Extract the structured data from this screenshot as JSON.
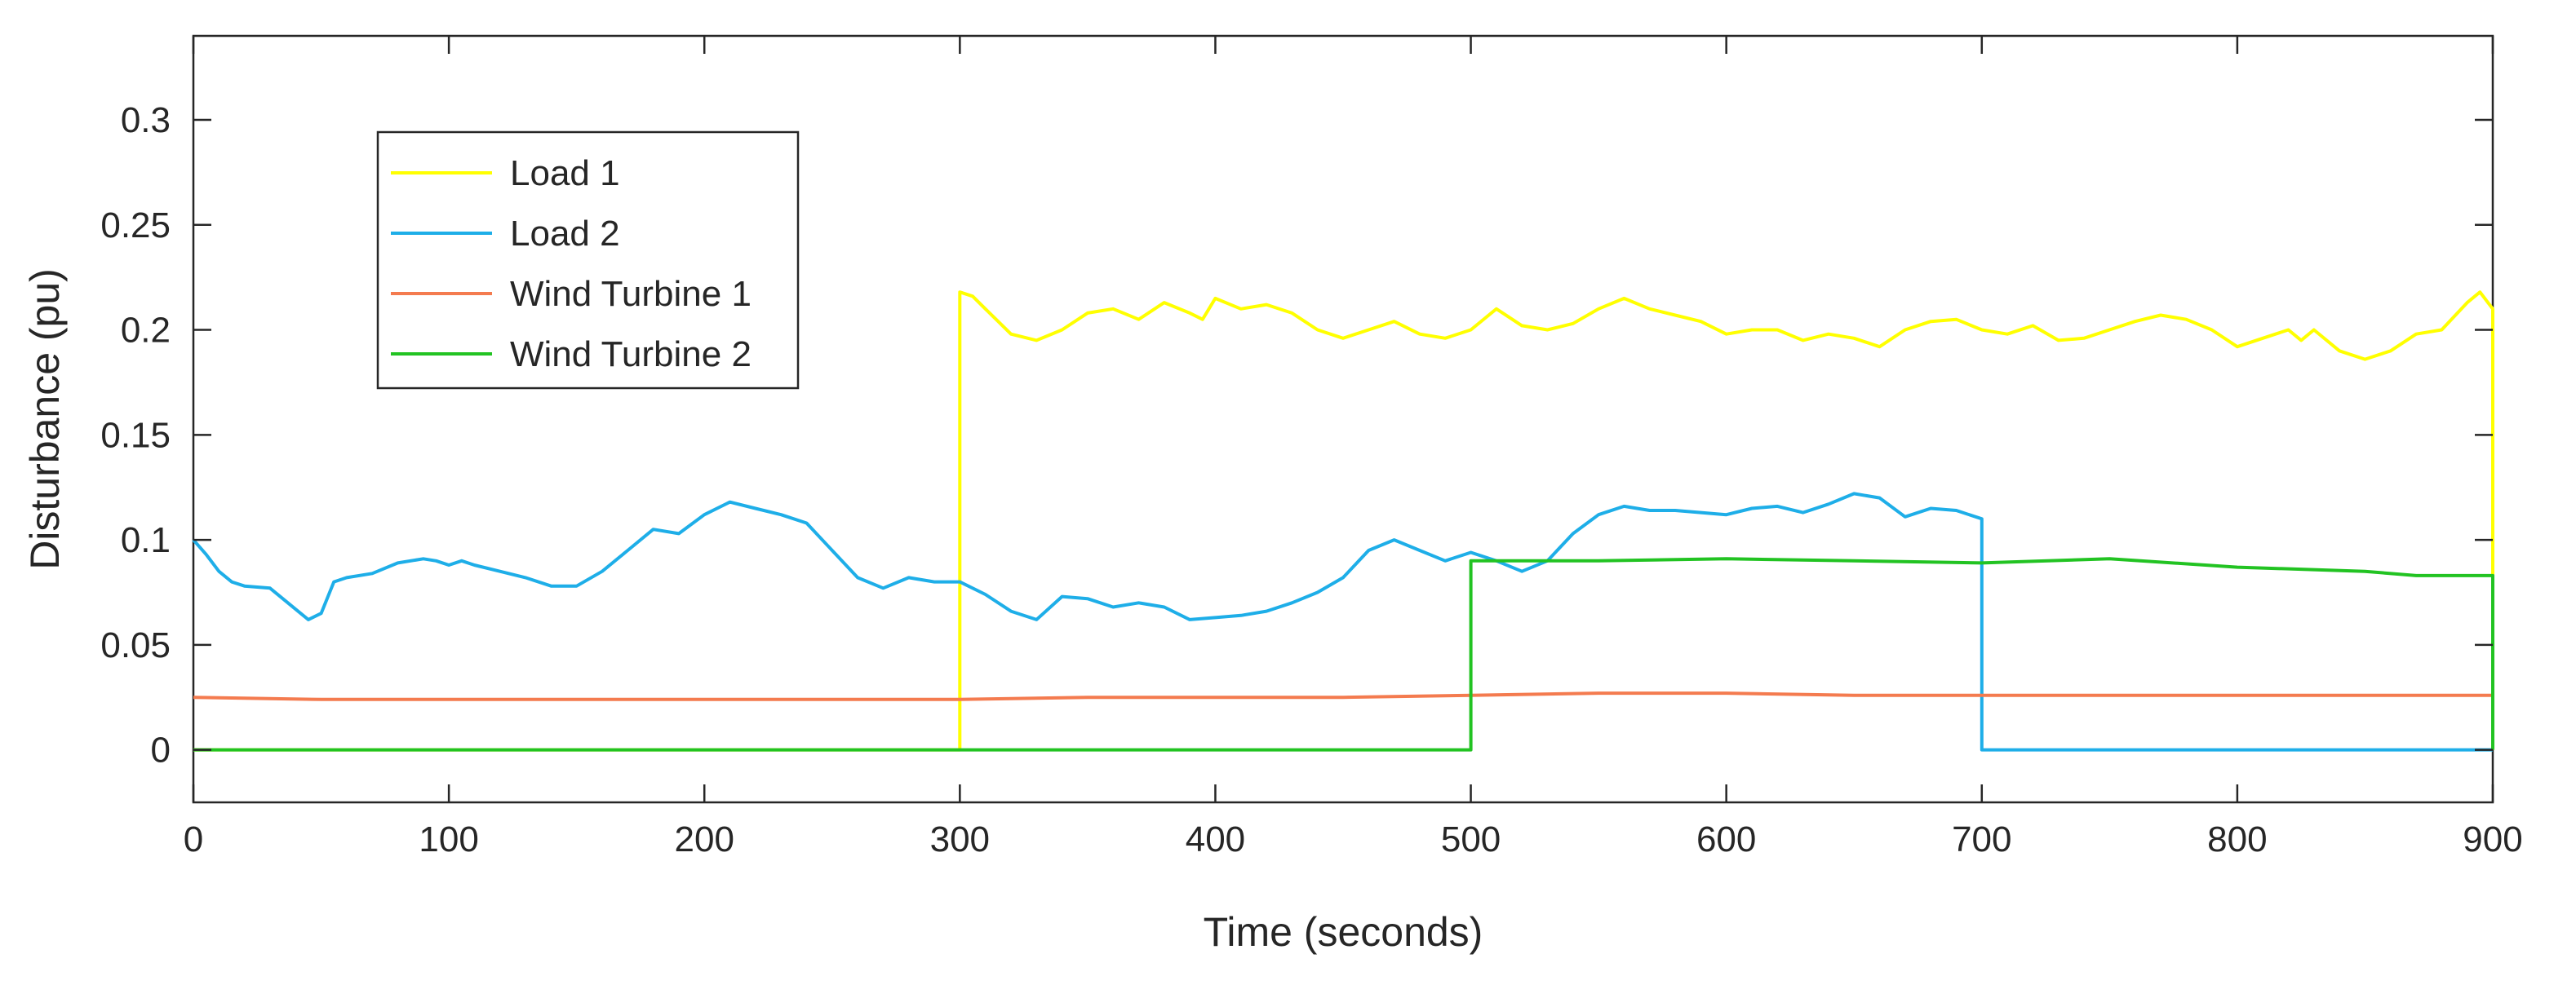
{
  "chart_data": {
    "type": "line",
    "title": "",
    "xlabel": "Time (seconds)",
    "ylabel": "Disturbance (pu)",
    "xlim": [
      0,
      900
    ],
    "ylim": [
      -0.025,
      0.34
    ],
    "xticks": [
      0,
      100,
      200,
      300,
      400,
      500,
      600,
      700,
      800,
      900
    ],
    "xtick_labels": [
      "0",
      "100",
      "200",
      "300",
      "400",
      "500",
      "600",
      "700",
      "800",
      "900"
    ],
    "yticks": [
      0,
      0.05,
      0.1,
      0.15,
      0.2,
      0.25,
      0.3
    ],
    "ytick_labels": [
      "0",
      "0.05",
      "0.1",
      "0.15",
      "0.2",
      "0.25",
      "0.3"
    ],
    "grid": false,
    "legend_position": "top-left",
    "series": [
      {
        "name": "Load 1",
        "color": "#FFFF00",
        "points": [
          [
            0,
            0
          ],
          [
            300,
            0
          ],
          [
            300,
            0.218
          ],
          [
            305,
            0.216
          ],
          [
            310,
            0.21
          ],
          [
            315,
            0.204
          ],
          [
            320,
            0.198
          ],
          [
            330,
            0.195
          ],
          [
            340,
            0.2
          ],
          [
            350,
            0.208
          ],
          [
            360,
            0.21
          ],
          [
            370,
            0.205
          ],
          [
            380,
            0.213
          ],
          [
            390,
            0.208
          ],
          [
            395,
            0.205
          ],
          [
            400,
            0.215
          ],
          [
            410,
            0.21
          ],
          [
            420,
            0.212
          ],
          [
            430,
            0.208
          ],
          [
            440,
            0.2
          ],
          [
            450,
            0.196
          ],
          [
            460,
            0.2
          ],
          [
            470,
            0.204
          ],
          [
            480,
            0.198
          ],
          [
            490,
            0.196
          ],
          [
            500,
            0.2
          ],
          [
            510,
            0.21
          ],
          [
            520,
            0.202
          ],
          [
            530,
            0.2
          ],
          [
            540,
            0.203
          ],
          [
            550,
            0.21
          ],
          [
            560,
            0.215
          ],
          [
            570,
            0.21
          ],
          [
            580,
            0.207
          ],
          [
            590,
            0.204
          ],
          [
            600,
            0.198
          ],
          [
            610,
            0.2
          ],
          [
            620,
            0.2
          ],
          [
            630,
            0.195
          ],
          [
            640,
            0.198
          ],
          [
            650,
            0.196
          ],
          [
            660,
            0.192
          ],
          [
            670,
            0.2
          ],
          [
            680,
            0.204
          ],
          [
            690,
            0.205
          ],
          [
            700,
            0.2
          ],
          [
            710,
            0.198
          ],
          [
            720,
            0.202
          ],
          [
            730,
            0.195
          ],
          [
            740,
            0.196
          ],
          [
            750,
            0.2
          ],
          [
            760,
            0.204
          ],
          [
            770,
            0.207
          ],
          [
            780,
            0.205
          ],
          [
            790,
            0.2
          ],
          [
            800,
            0.192
          ],
          [
            810,
            0.196
          ],
          [
            820,
            0.2
          ],
          [
            825,
            0.195
          ],
          [
            830,
            0.2
          ],
          [
            840,
            0.19
          ],
          [
            850,
            0.186
          ],
          [
            860,
            0.19
          ],
          [
            870,
            0.198
          ],
          [
            880,
            0.2
          ],
          [
            890,
            0.213
          ],
          [
            895,
            0.218
          ],
          [
            900,
            0.21
          ],
          [
            900,
            0
          ]
        ]
      },
      {
        "name": "Load 2",
        "color": "#1EAEE8",
        "points": [
          [
            0,
            0.1
          ],
          [
            5,
            0.093
          ],
          [
            10,
            0.085
          ],
          [
            15,
            0.08
          ],
          [
            20,
            0.078
          ],
          [
            30,
            0.077
          ],
          [
            40,
            0.067
          ],
          [
            45,
            0.062
          ],
          [
            50,
            0.065
          ],
          [
            55,
            0.08
          ],
          [
            60,
            0.082
          ],
          [
            70,
            0.084
          ],
          [
            80,
            0.089
          ],
          [
            90,
            0.091
          ],
          [
            95,
            0.09
          ],
          [
            100,
            0.088
          ],
          [
            105,
            0.09
          ],
          [
            110,
            0.088
          ],
          [
            120,
            0.085
          ],
          [
            130,
            0.082
          ],
          [
            140,
            0.078
          ],
          [
            150,
            0.078
          ],
          [
            160,
            0.085
          ],
          [
            170,
            0.095
          ],
          [
            180,
            0.105
          ],
          [
            190,
            0.103
          ],
          [
            200,
            0.112
          ],
          [
            210,
            0.118
          ],
          [
            220,
            0.115
          ],
          [
            230,
            0.112
          ],
          [
            240,
            0.108
          ],
          [
            250,
            0.095
          ],
          [
            260,
            0.082
          ],
          [
            270,
            0.077
          ],
          [
            280,
            0.082
          ],
          [
            290,
            0.08
          ],
          [
            300,
            0.08
          ],
          [
            310,
            0.074
          ],
          [
            320,
            0.066
          ],
          [
            330,
            0.062
          ],
          [
            340,
            0.073
          ],
          [
            350,
            0.072
          ],
          [
            360,
            0.068
          ],
          [
            370,
            0.07
          ],
          [
            380,
            0.068
          ],
          [
            390,
            0.062
          ],
          [
            400,
            0.063
          ],
          [
            410,
            0.064
          ],
          [
            420,
            0.066
          ],
          [
            430,
            0.07
          ],
          [
            440,
            0.075
          ],
          [
            450,
            0.082
          ],
          [
            460,
            0.095
          ],
          [
            470,
            0.1
          ],
          [
            480,
            0.095
          ],
          [
            490,
            0.09
          ],
          [
            500,
            0.094
          ],
          [
            510,
            0.09
          ],
          [
            520,
            0.085
          ],
          [
            530,
            0.09
          ],
          [
            540,
            0.103
          ],
          [
            550,
            0.112
          ],
          [
            560,
            0.116
          ],
          [
            570,
            0.114
          ],
          [
            580,
            0.114
          ],
          [
            590,
            0.113
          ],
          [
            600,
            0.112
          ],
          [
            610,
            0.115
          ],
          [
            620,
            0.116
          ],
          [
            630,
            0.113
          ],
          [
            640,
            0.117
          ],
          [
            650,
            0.122
          ],
          [
            660,
            0.12
          ],
          [
            670,
            0.111
          ],
          [
            680,
            0.115
          ],
          [
            690,
            0.114
          ],
          [
            700,
            0.11
          ],
          [
            700,
            0
          ],
          [
            900,
            0
          ]
        ]
      },
      {
        "name": "Wind Turbine 1",
        "color": "#F47B4F",
        "points": [
          [
            0,
            0.025
          ],
          [
            50,
            0.024
          ],
          [
            100,
            0.024
          ],
          [
            150,
            0.024
          ],
          [
            200,
            0.024
          ],
          [
            250,
            0.024
          ],
          [
            300,
            0.024
          ],
          [
            350,
            0.025
          ],
          [
            400,
            0.025
          ],
          [
            450,
            0.025
          ],
          [
            500,
            0.026
          ],
          [
            550,
            0.027
          ],
          [
            600,
            0.027
          ],
          [
            650,
            0.026
          ],
          [
            700,
            0.026
          ],
          [
            750,
            0.026
          ],
          [
            800,
            0.026
          ],
          [
            850,
            0.026
          ],
          [
            900,
            0.026
          ]
        ]
      },
      {
        "name": "Wind Turbine 2",
        "color": "#22C322",
        "points": [
          [
            0,
            0
          ],
          [
            500,
            0
          ],
          [
            500,
            0.09
          ],
          [
            550,
            0.09
          ],
          [
            600,
            0.091
          ],
          [
            650,
            0.09
          ],
          [
            700,
            0.089
          ],
          [
            750,
            0.091
          ],
          [
            800,
            0.087
          ],
          [
            850,
            0.085
          ],
          [
            870,
            0.083
          ],
          [
            900,
            0.083
          ],
          [
            900,
            0
          ]
        ]
      }
    ]
  }
}
